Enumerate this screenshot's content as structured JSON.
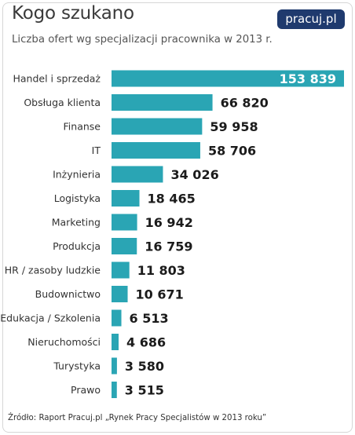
{
  "header": {
    "title": "Kogo szukano",
    "subtitle": "Liczba ofert wg specjalizacji pracownika w 2013 r.",
    "logo": "pracuj.pl"
  },
  "source": "Źródło: Raport Pracuj.pl „Rynek Pracy Specjalistów w 2013 roku”",
  "colors": {
    "bar": "#2aa5b4",
    "logo_bg": "#1f3a6e"
  },
  "chart_data": {
    "type": "bar",
    "orientation": "horizontal",
    "categories": [
      "Handel i sprzedaż",
      "Obsługa klienta",
      "Finanse",
      "IT",
      "Inżynieria",
      "Logistyka",
      "Marketing",
      "Produkcja",
      "HR / zasoby ludzkie",
      "Budownictwo",
      "Edukacja / Szkolenia",
      "Nieruchomości",
      "Turystyka",
      "Prawo"
    ],
    "values": [
      153839,
      66820,
      59958,
      58706,
      34026,
      18465,
      16942,
      16759,
      11803,
      10671,
      6513,
      4686,
      3580,
      3515
    ],
    "value_labels": [
      "153 839",
      "66 820",
      "59 958",
      "58 706",
      "34 026",
      "18 465",
      "16 942",
      "16 759",
      "11 803",
      "10 671",
      "6 513",
      "4 686",
      "3 580",
      "3 515"
    ],
    "title": "Kogo szukano",
    "subtitle": "Liczba ofert wg specjalizacji pracownika w 2013 r.",
    "xlim": [
      0,
      153839
    ],
    "grid": false
  }
}
